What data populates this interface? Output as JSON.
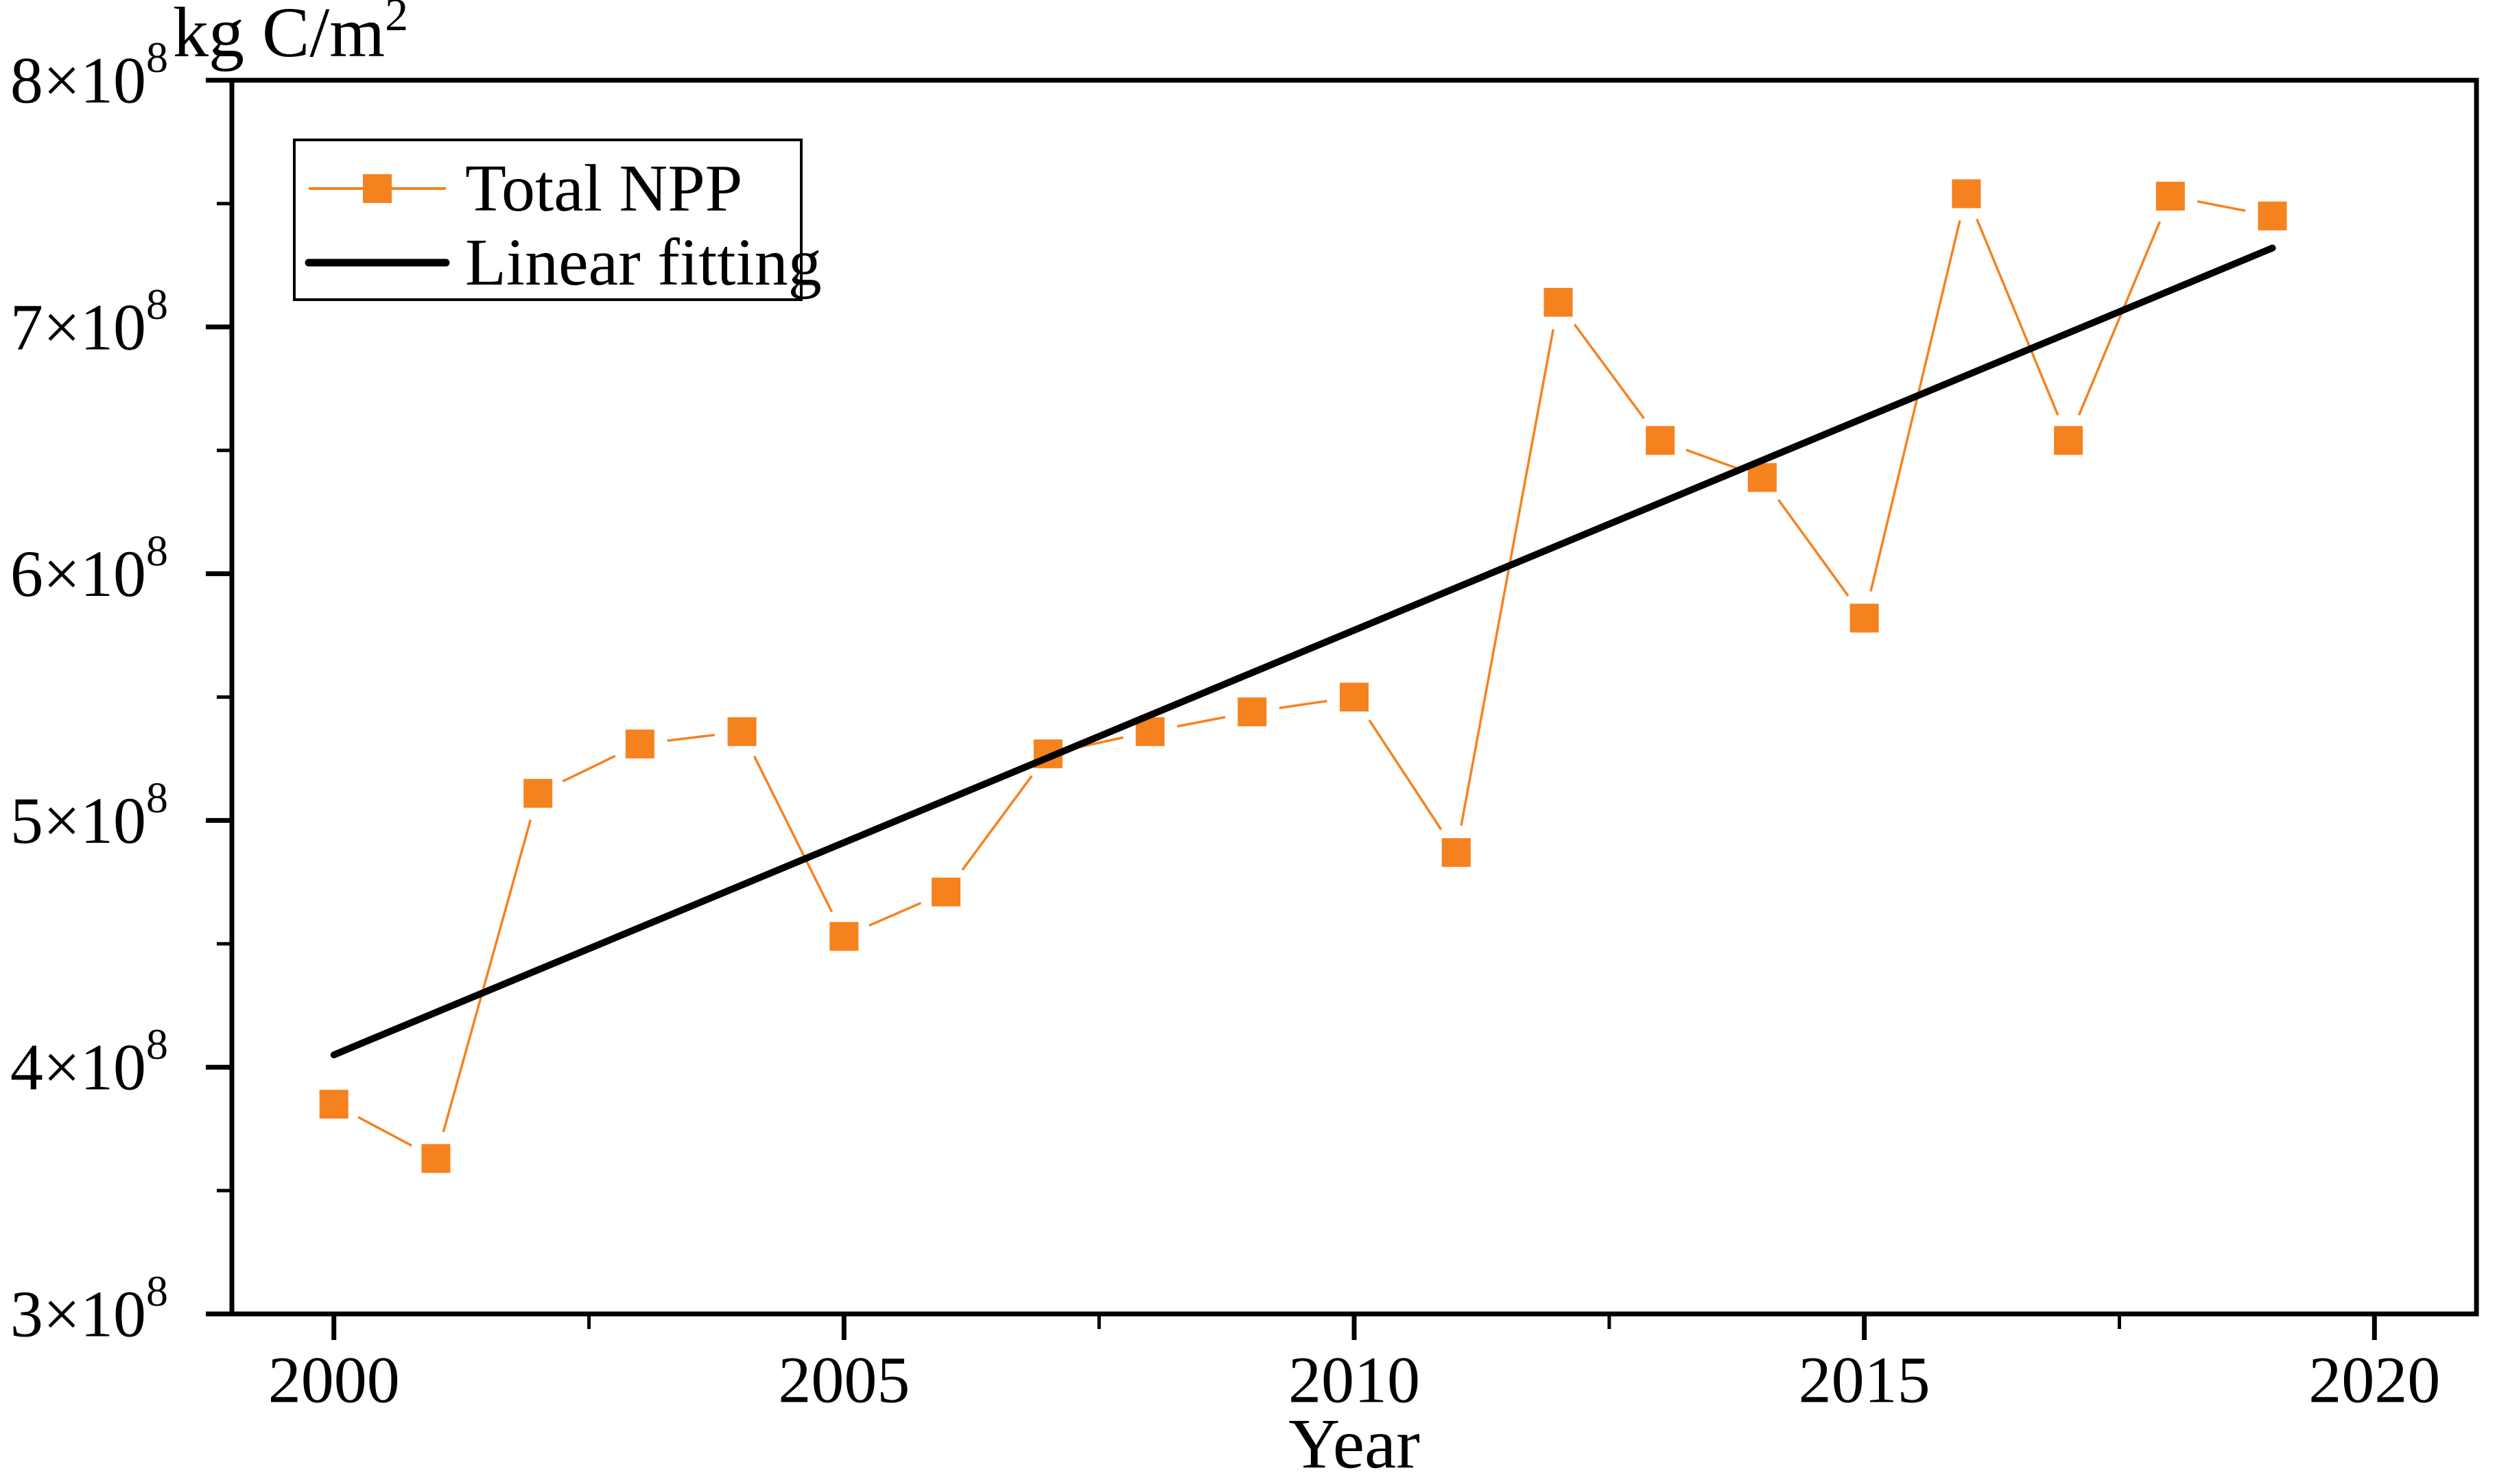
{
  "chart_data": {
    "type": "line",
    "title": "",
    "x_label": "Year",
    "y_unit": {
      "text": "kg C/m",
      "exponent": "2"
    },
    "xlim": [
      1999,
      2021
    ],
    "ylim_e8": [
      3,
      8
    ],
    "value_scale": 100000000,
    "x_ticks": [
      2000,
      2005,
      2010,
      2015,
      2020
    ],
    "x_minor_ticks": [
      2002.5,
      2007.5,
      2012.5,
      2017.5
    ],
    "y_ticks_mantissa": [
      3,
      4,
      5,
      6,
      7,
      8
    ],
    "y_tick_times_base": "×10",
    "y_tick_exponent": "8",
    "y_minor_ticks_mantissa": [
      3.5,
      4.5,
      5.5,
      6.5,
      7.5
    ],
    "grid": false,
    "legend_position": "upper-left",
    "colors": {
      "total_npp": "#F5821F",
      "linear_fitting": "#000000",
      "frame": "#000000"
    },
    "series": [
      {
        "name": "Total NPP",
        "kind": "line-with-square-markers",
        "x": [
          2000,
          2001,
          2002,
          2003,
          2004,
          2005,
          2006,
          2007,
          2008,
          2009,
          2010,
          2011,
          2012,
          2013,
          2014,
          2015,
          2016,
          2017,
          2018,
          2019
        ],
        "values_e8": [
          3.85,
          3.63,
          5.11,
          5.31,
          5.36,
          4.53,
          4.71,
          5.27,
          5.36,
          5.44,
          5.5,
          4.87,
          7.1,
          6.54,
          6.39,
          5.82,
          7.54,
          6.54,
          7.53,
          7.45
        ]
      },
      {
        "name": "Linear fitting",
        "kind": "straight-line",
        "points_e8": [
          [
            2000,
            4.05
          ],
          [
            2019,
            7.32
          ]
        ]
      }
    ],
    "legend": [
      {
        "label": "Total NPP"
      },
      {
        "label": "Linear fitting"
      }
    ]
  }
}
